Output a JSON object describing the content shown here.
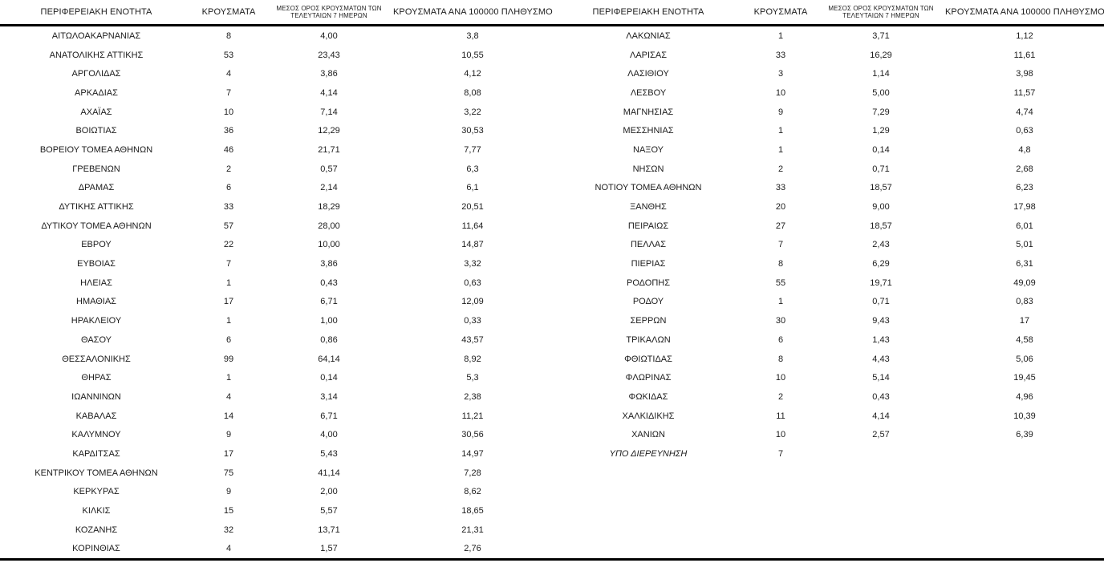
{
  "table": {
    "headers": {
      "region": "ΠΕΡΙΦΕΡΕΙΑΚΗ ΕΝΟΤΗΤΑ",
      "cases": "ΚΡΟΥΣΜΑΤΑ",
      "avg7_line1": "ΜΕΣΟΣ ΟΡΟΣ ΚΡΟΥΣΜΑΤΩΝ ΤΩΝ",
      "avg7_line2": "ΤΕΛΕΥΤΑΙΩΝ 7 ΗΜΕΡΩΝ",
      "per100k": "ΚΡΟΥΣΜΑΤΑ ΑΝΑ 100000 ΠΛΗΘΥΣΜΟ"
    },
    "left_rows": [
      {
        "region": "ΑΙΤΩΛΟΑΚΑΡΝΑΝΙΑΣ",
        "cases": "8",
        "avg7": "4,00",
        "per100k": "3,8"
      },
      {
        "region": "ΑΝΑΤΟΛΙΚΗΣ ΑΤΤΙΚΗΣ",
        "cases": "53",
        "avg7": "23,43",
        "per100k": "10,55"
      },
      {
        "region": "ΑΡΓΟΛΙΔΑΣ",
        "cases": "4",
        "avg7": "3,86",
        "per100k": "4,12"
      },
      {
        "region": "ΑΡΚΑΔΙΑΣ",
        "cases": "7",
        "avg7": "4,14",
        "per100k": "8,08"
      },
      {
        "region": "ΑΧΑΪΑΣ",
        "cases": "10",
        "avg7": "7,14",
        "per100k": "3,22"
      },
      {
        "region": "ΒΟΙΩΤΙΑΣ",
        "cases": "36",
        "avg7": "12,29",
        "per100k": "30,53"
      },
      {
        "region": "ΒΟΡΕΙΟΥ ΤΟΜΕΑ ΑΘΗΝΩΝ",
        "cases": "46",
        "avg7": "21,71",
        "per100k": "7,77"
      },
      {
        "region": "ΓΡΕΒΕΝΩΝ",
        "cases": "2",
        "avg7": "0,57",
        "per100k": "6,3"
      },
      {
        "region": "ΔΡΑΜΑΣ",
        "cases": "6",
        "avg7": "2,14",
        "per100k": "6,1"
      },
      {
        "region": "ΔΥΤΙΚΗΣ ΑΤΤΙΚΗΣ",
        "cases": "33",
        "avg7": "18,29",
        "per100k": "20,51"
      },
      {
        "region": "ΔΥΤΙΚΟΥ ΤΟΜΕΑ ΑΘΗΝΩΝ",
        "cases": "57",
        "avg7": "28,00",
        "per100k": "11,64"
      },
      {
        "region": "ΕΒΡΟΥ",
        "cases": "22",
        "avg7": "10,00",
        "per100k": "14,87"
      },
      {
        "region": "ΕΥΒΟΙΑΣ",
        "cases": "7",
        "avg7": "3,86",
        "per100k": "3,32"
      },
      {
        "region": "ΗΛΕΙΑΣ",
        "cases": "1",
        "avg7": "0,43",
        "per100k": "0,63"
      },
      {
        "region": "ΗΜΑΘΙΑΣ",
        "cases": "17",
        "avg7": "6,71",
        "per100k": "12,09"
      },
      {
        "region": "ΗΡΑΚΛΕΙΟΥ",
        "cases": "1",
        "avg7": "1,00",
        "per100k": "0,33"
      },
      {
        "region": "ΘΑΣΟΥ",
        "cases": "6",
        "avg7": "0,86",
        "per100k": "43,57"
      },
      {
        "region": "ΘΕΣΣΑΛΟΝΙΚΗΣ",
        "cases": "99",
        "avg7": "64,14",
        "per100k": "8,92"
      },
      {
        "region": "ΘΗΡΑΣ",
        "cases": "1",
        "avg7": "0,14",
        "per100k": "5,3"
      },
      {
        "region": "ΙΩΑΝΝΙΝΩΝ",
        "cases": "4",
        "avg7": "3,14",
        "per100k": "2,38"
      },
      {
        "region": "ΚΑΒΑΛΑΣ",
        "cases": "14",
        "avg7": "6,71",
        "per100k": "11,21"
      },
      {
        "region": "ΚΑΛΥΜΝΟΥ",
        "cases": "9",
        "avg7": "4,00",
        "per100k": "30,56"
      },
      {
        "region": "ΚΑΡΔΙΤΣΑΣ",
        "cases": "17",
        "avg7": "5,43",
        "per100k": "14,97"
      },
      {
        "region": "ΚΕΝΤΡΙΚΟΥ ΤΟΜΕΑ ΑΘΗΝΩΝ",
        "cases": "75",
        "avg7": "41,14",
        "per100k": "7,28"
      },
      {
        "region": "ΚΕΡΚΥΡΑΣ",
        "cases": "9",
        "avg7": "2,00",
        "per100k": "8,62"
      },
      {
        "region": "ΚΙΛΚΙΣ",
        "cases": "15",
        "avg7": "5,57",
        "per100k": "18,65"
      },
      {
        "region": "ΚΟΖΑΝΗΣ",
        "cases": "32",
        "avg7": "13,71",
        "per100k": "21,31"
      },
      {
        "region": "ΚΟΡΙΝΘΙΑΣ",
        "cases": "4",
        "avg7": "1,57",
        "per100k": "2,76"
      }
    ],
    "right_rows": [
      {
        "region": "ΛΑΚΩΝΙΑΣ",
        "cases": "1",
        "avg7": "3,71",
        "per100k": "1,12"
      },
      {
        "region": "ΛΑΡΙΣΑΣ",
        "cases": "33",
        "avg7": "16,29",
        "per100k": "11,61"
      },
      {
        "region": "ΛΑΣΙΘΙΟΥ",
        "cases": "3",
        "avg7": "1,14",
        "per100k": "3,98"
      },
      {
        "region": "ΛΕΣΒΟΥ",
        "cases": "10",
        "avg7": "5,00",
        "per100k": "11,57"
      },
      {
        "region": "ΜΑΓΝΗΣΙΑΣ",
        "cases": "9",
        "avg7": "7,29",
        "per100k": "4,74"
      },
      {
        "region": "ΜΕΣΣΗΝΙΑΣ",
        "cases": "1",
        "avg7": "1,29",
        "per100k": "0,63"
      },
      {
        "region": "ΝΑΞΟΥ",
        "cases": "1",
        "avg7": "0,14",
        "per100k": "4,8"
      },
      {
        "region": "ΝΗΣΩΝ",
        "cases": "2",
        "avg7": "0,71",
        "per100k": "2,68"
      },
      {
        "region": "ΝΟΤΙΟΥ ΤΟΜΕΑ ΑΘΗΝΩΝ",
        "cases": "33",
        "avg7": "18,57",
        "per100k": "6,23"
      },
      {
        "region": "ΞΑΝΘΗΣ",
        "cases": "20",
        "avg7": "9,00",
        "per100k": "17,98"
      },
      {
        "region": "ΠΕΙΡΑΙΩΣ",
        "cases": "27",
        "avg7": "18,57",
        "per100k": "6,01"
      },
      {
        "region": "ΠΕΛΛΑΣ",
        "cases": "7",
        "avg7": "2,43",
        "per100k": "5,01"
      },
      {
        "region": "ΠΙΕΡΙΑΣ",
        "cases": "8",
        "avg7": "6,29",
        "per100k": "6,31"
      },
      {
        "region": "ΡΟΔΟΠΗΣ",
        "cases": "55",
        "avg7": "19,71",
        "per100k": "49,09"
      },
      {
        "region": "ΡΟΔΟΥ",
        "cases": "1",
        "avg7": "0,71",
        "per100k": "0,83"
      },
      {
        "region": "ΣΕΡΡΩΝ",
        "cases": "30",
        "avg7": "9,43",
        "per100k": "17"
      },
      {
        "region": "ΤΡΙΚΑΛΩΝ",
        "cases": "6",
        "avg7": "1,43",
        "per100k": "4,58"
      },
      {
        "region": "ΦΘΙΩΤΙΔΑΣ",
        "cases": "8",
        "avg7": "4,43",
        "per100k": "5,06"
      },
      {
        "region": "ΦΛΩΡΙΝΑΣ",
        "cases": "10",
        "avg7": "5,14",
        "per100k": "19,45"
      },
      {
        "region": "ΦΩΚΙΔΑΣ",
        "cases": "2",
        "avg7": "0,43",
        "per100k": "4,96"
      },
      {
        "region": "ΧΑΛΚΙΔΙΚΗΣ",
        "cases": "11",
        "avg7": "4,14",
        "per100k": "10,39"
      },
      {
        "region": "ΧΑΝΙΩΝ",
        "cases": "10",
        "avg7": "2,57",
        "per100k": "6,39"
      },
      {
        "region": "ΥΠΟ ΔΙΕΡΕΥΝΗΣΗ",
        "cases": "7",
        "avg7": "",
        "per100k": "",
        "italic": true
      }
    ]
  }
}
